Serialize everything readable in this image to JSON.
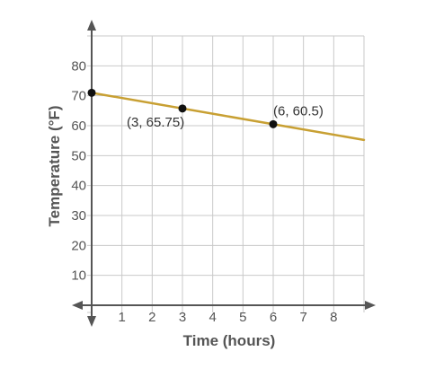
{
  "chart_data": {
    "type": "line",
    "xlabel": "Time (hours)",
    "ylabel": "Temperature (°F)",
    "xlim": [
      0,
      9
    ],
    "ylim": [
      0,
      90
    ],
    "x_ticks": [
      1,
      2,
      3,
      4,
      5,
      6,
      7,
      8
    ],
    "y_ticks": [
      10,
      20,
      30,
      40,
      50,
      60,
      70,
      80
    ],
    "grid": true,
    "line": {
      "x": [
        0,
        9
      ],
      "y": [
        71,
        55.25
      ],
      "color": "#c8a033"
    },
    "points": [
      {
        "x": 0,
        "y": 71,
        "label": ""
      },
      {
        "x": 3,
        "y": 65.75,
        "label": "(3, 65.75)"
      },
      {
        "x": 6,
        "y": 60.5,
        "label": "(6, 60.5)"
      }
    ],
    "point_color": "#111111",
    "axis_color": "#555555"
  }
}
